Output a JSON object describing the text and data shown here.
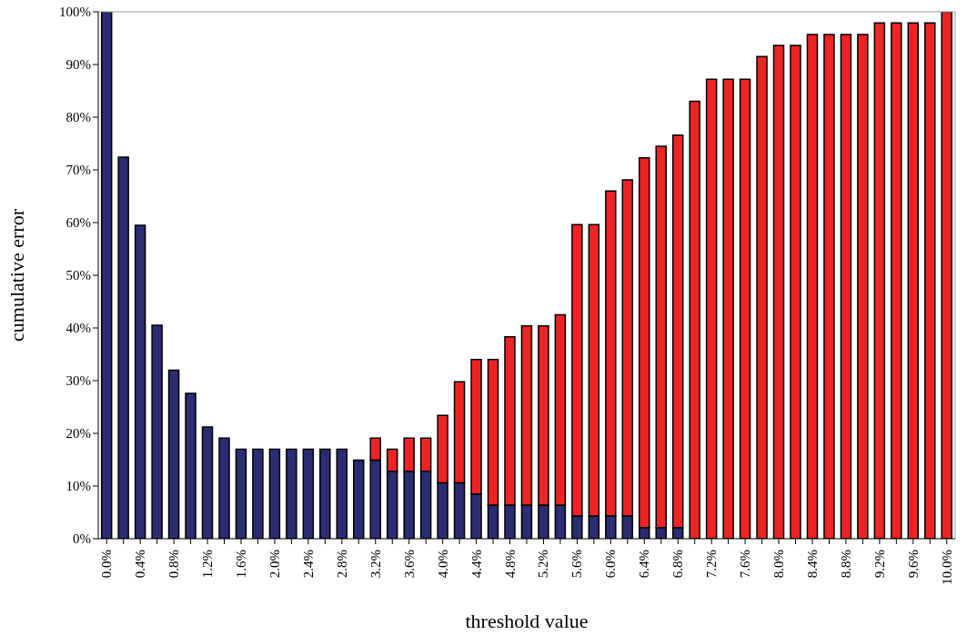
{
  "chart_data": {
    "type": "bar",
    "stacked": true,
    "xlabel": "threshold value",
    "ylabel": "cumulative error",
    "categories": [
      "0.0%",
      null,
      "0.4%",
      null,
      "0.8%",
      null,
      "1.2%",
      null,
      "1.6%",
      null,
      "2.0%",
      null,
      "2.4%",
      null,
      "2.8%",
      null,
      "3.2%",
      null,
      "3.6%",
      null,
      "4.0%",
      null,
      "4.4%",
      null,
      "4.8%",
      null,
      "5.2%",
      null,
      "5.6%",
      null,
      "6.0%",
      null,
      "6.4%",
      null,
      "6.8%",
      null,
      "7.2%",
      null,
      "7.6%",
      null,
      "8.0%",
      null,
      "8.4%",
      null,
      "8.8%",
      null,
      "9.2%",
      null,
      "9.6%",
      null,
      "10.0%"
    ],
    "series": [
      {
        "color": "#2b2c72",
        "values": [
          100,
          72.4,
          59.5,
          40.5,
          32,
          27.6,
          21.2,
          19.1,
          17,
          17,
          17,
          17,
          17,
          17,
          17,
          14.9,
          14.9,
          12.8,
          12.8,
          12.8,
          10.6,
          10.6,
          8.5,
          6.4,
          6.4,
          6.4,
          6.4,
          6.4,
          4.3,
          4.3,
          4.3,
          4.3,
          2.1,
          2.1,
          2.1,
          null,
          null,
          null,
          null,
          null,
          null,
          null,
          null,
          null,
          null,
          null,
          null,
          null,
          null,
          null,
          null
        ]
      },
      {
        "color": "#ee2424",
        "values": [
          null,
          null,
          null,
          null,
          null,
          null,
          null,
          null,
          null,
          null,
          null,
          null,
          null,
          null,
          null,
          null,
          4.2,
          4.2,
          6.3,
          6.3,
          12.8,
          19.2,
          25.5,
          27.6,
          31.9,
          34,
          34,
          36.1,
          55.3,
          55.3,
          61.7,
          63.8,
          70.2,
          72.4,
          74.5,
          83,
          87.2,
          87.2,
          87.2,
          91.5,
          93.6,
          93.6,
          95.7,
          95.7,
          95.7,
          95.7,
          97.9,
          97.9,
          97.9,
          97.9,
          100
        ]
      }
    ],
    "ylim": [
      0,
      100
    ],
    "yticks": [
      {
        "value": 0,
        "label": "0%"
      },
      {
        "value": 10,
        "label": "10%"
      },
      {
        "value": 20,
        "label": "20%"
      },
      {
        "value": 30,
        "label": "30%"
      },
      {
        "value": 40,
        "label": "40%"
      },
      {
        "value": 50,
        "label": "50%"
      },
      {
        "value": 60,
        "label": "60%"
      },
      {
        "value": 70,
        "label": "70%"
      },
      {
        "value": 80,
        "label": "80%"
      },
      {
        "value": 90,
        "label": "90%"
      },
      {
        "value": 100,
        "label": "100%"
      }
    ],
    "grid": false,
    "legend": false
  }
}
